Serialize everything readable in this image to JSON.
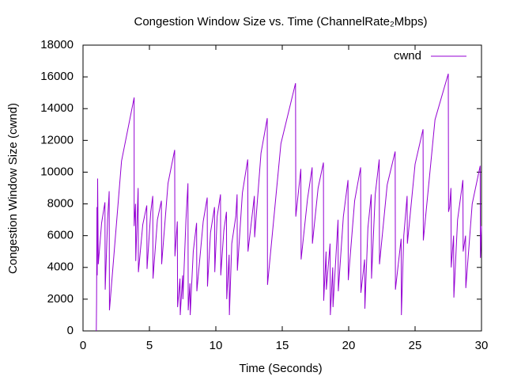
{
  "chart_data": {
    "type": "line",
    "title": "Congestion Window Size vs. Time (ChannelRate₂Mbps)",
    "x_label": "Time (Seconds)",
    "y_label": "Congestion Window Size (cwnd)",
    "xlim": [
      0,
      30
    ],
    "xticks": [
      0,
      5,
      10,
      15,
      20,
      25,
      30
    ],
    "ylim": [
      0,
      18000
    ],
    "yticks": [
      0,
      2000,
      4000,
      6000,
      8000,
      10000,
      12000,
      14000,
      16000,
      18000
    ],
    "grid": false,
    "legend": "top-right",
    "series": [
      {
        "name": "cwnd",
        "color": "#9400d3",
        "x": [
          1.0,
          1.02,
          1.05,
          1.07,
          1.1,
          1.15,
          1.4,
          1.65,
          1.67,
          1.85,
          1.97,
          1.99,
          2.9,
          3.85,
          3.85,
          3.95,
          3.97,
          4.15,
          4.17,
          4.5,
          4.8,
          4.82,
          5.1,
          5.25,
          5.27,
          5.6,
          5.9,
          5.92,
          6.4,
          6.9,
          6.92,
          7.1,
          7.12,
          7.3,
          7.32,
          7.5,
          7.52,
          7.75,
          7.9,
          7.92,
          8.05,
          8.07,
          8.3,
          8.55,
          8.57,
          9.05,
          9.35,
          9.37,
          9.6,
          9.9,
          9.92,
          10.1,
          10.35,
          10.37,
          10.6,
          10.8,
          10.82,
          11.0,
          11.02,
          11.2,
          11.5,
          11.6,
          11.62,
          12.0,
          12.4,
          12.42,
          12.9,
          12.92,
          13.4,
          13.87,
          13.89,
          14.9,
          16.0,
          16.02,
          16.4,
          16.42,
          16.9,
          17.25,
          17.27,
          17.7,
          18.1,
          18.12,
          18.3,
          18.32,
          18.6,
          18.62,
          18.8,
          18.82,
          19.2,
          19.22,
          19.6,
          19.95,
          19.97,
          20.45,
          20.9,
          20.92,
          21.2,
          21.22,
          21.45,
          21.7,
          21.72,
          22.0,
          22.3,
          22.32,
          22.9,
          23.5,
          23.52,
          23.95,
          23.97,
          24.15,
          24.4,
          24.42,
          25.0,
          25.6,
          25.62,
          26.5,
          27.5,
          27.52,
          27.6,
          27.7,
          27.72,
          27.9,
          27.92,
          28.2,
          28.6,
          28.62,
          28.8,
          28.82,
          29.3,
          29.9,
          29.92,
          30.0
        ],
        "values": [
          0,
          1800,
          7800,
          3500,
          9600,
          4200,
          6800,
          8100,
          2600,
          7000,
          8800,
          1300,
          10700,
          14700,
          6600,
          8000,
          4400,
          9000,
          3700,
          6700,
          7900,
          3900,
          7500,
          8500,
          3300,
          7000,
          8200,
          4200,
          9300,
          11400,
          4700,
          6900,
          1500,
          3300,
          1000,
          3500,
          2000,
          7000,
          9300,
          1300,
          3000,
          1000,
          5000,
          6800,
          2500,
          6900,
          8400,
          2800,
          6200,
          7800,
          3700,
          7200,
          8600,
          3500,
          6300,
          7500,
          2000,
          4800,
          1000,
          5500,
          7200,
          8600,
          3800,
          8700,
          10800,
          5000,
          8500,
          5900,
          11200,
          13400,
          2900,
          11800,
          15600,
          7200,
          10200,
          4500,
          8300,
          10300,
          5500,
          9000,
          10600,
          1900,
          5000,
          2600,
          5500,
          1000,
          4000,
          1500,
          7000,
          2500,
          7200,
          9500,
          3200,
          8200,
          10300,
          2400,
          4500,
          1400,
          6500,
          8600,
          3300,
          8600,
          10800,
          4200,
          9200,
          11300,
          2600,
          5800,
          1000,
          6000,
          8500,
          5500,
          10500,
          12700,
          5700,
          13300,
          16200,
          7500,
          7800,
          9000,
          4000,
          6000,
          2100,
          7000,
          9500,
          5000,
          6000,
          2700,
          8000,
          10400,
          4600,
          6600
        ]
      }
    ]
  }
}
